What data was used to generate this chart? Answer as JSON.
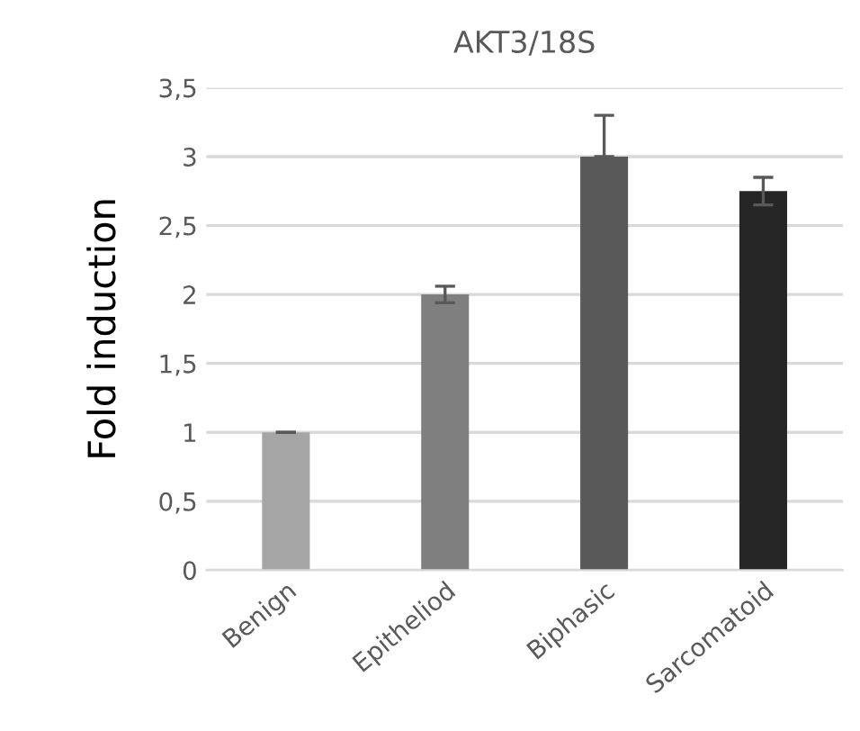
{
  "chart_data": {
    "type": "bar",
    "title": "AKT3/18S",
    "ylabel": "Fold induction",
    "categories": [
      "Benign",
      "Epitheliod",
      "Biphasic",
      "Sarcomatoid"
    ],
    "values": [
      1,
      2,
      3,
      2.75
    ],
    "colors": [
      "#a5a5a5",
      "#7f7f7f",
      "#595959",
      "#262626"
    ],
    "errors": [
      0,
      0.06,
      [
        3.0,
        3.3
      ],
      0.1
    ],
    "ylim": [
      0,
      3.5
    ],
    "yticks": [
      0,
      {
        "value": 0.5,
        "label": "0,5"
      },
      1,
      {
        "value": 1.5,
        "label": "1,5"
      },
      2,
      {
        "value": 2.5,
        "label": "2,5"
      },
      3,
      {
        "value": 3.5,
        "label": "3,5"
      }
    ],
    "grid": "y",
    "legend": false
  }
}
